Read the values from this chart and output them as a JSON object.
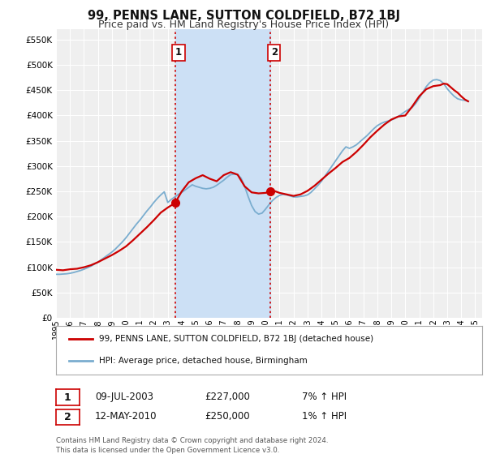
{
  "title": "99, PENNS LANE, SUTTON COLDFIELD, B72 1BJ",
  "subtitle": "Price paid vs. HM Land Registry's House Price Index (HPI)",
  "ytick_values": [
    0,
    50000,
    100000,
    150000,
    200000,
    250000,
    300000,
    350000,
    400000,
    450000,
    500000,
    550000
  ],
  "ylim": [
    0,
    570000
  ],
  "xlim_start": 1995.0,
  "xlim_end": 2025.5,
  "background_color": "#ffffff",
  "plot_bg_color": "#efefef",
  "grid_color": "#ffffff",
  "red_line_color": "#cc0000",
  "blue_line_color": "#7aadcf",
  "shade_color": "#cce0f5",
  "marker1_date": 2003.52,
  "marker2_date": 2010.36,
  "marker1_value": 227000,
  "marker2_value": 250000,
  "vline1_date": 2003.52,
  "vline2_date": 2010.36,
  "legend_label_red": "99, PENNS LANE, SUTTON COLDFIELD, B72 1BJ (detached house)",
  "legend_label_blue": "HPI: Average price, detached house, Birmingham",
  "table_row1": [
    "1",
    "09-JUL-2003",
    "£227,000",
    "7% ↑ HPI"
  ],
  "table_row2": [
    "2",
    "12-MAY-2010",
    "£250,000",
    "1% ↑ HPI"
  ],
  "footer": "Contains HM Land Registry data © Crown copyright and database right 2024.\nThis data is licensed under the Open Government Licence v3.0.",
  "title_fontsize": 10.5,
  "subtitle_fontsize": 9,
  "tick_fontsize": 7.5,
  "hpi_data_x": [
    1995.0,
    1995.25,
    1995.5,
    1995.75,
    1996.0,
    1996.25,
    1996.5,
    1996.75,
    1997.0,
    1997.25,
    1997.5,
    1997.75,
    1998.0,
    1998.25,
    1998.5,
    1998.75,
    1999.0,
    1999.25,
    1999.5,
    1999.75,
    2000.0,
    2000.25,
    2000.5,
    2000.75,
    2001.0,
    2001.25,
    2001.5,
    2001.75,
    2002.0,
    2002.25,
    2002.5,
    2002.75,
    2003.0,
    2003.25,
    2003.5,
    2003.75,
    2004.0,
    2004.25,
    2004.5,
    2004.75,
    2005.0,
    2005.25,
    2005.5,
    2005.75,
    2006.0,
    2006.25,
    2006.5,
    2006.75,
    2007.0,
    2007.25,
    2007.5,
    2007.75,
    2008.0,
    2008.25,
    2008.5,
    2008.75,
    2009.0,
    2009.25,
    2009.5,
    2009.75,
    2010.0,
    2010.25,
    2010.5,
    2010.75,
    2011.0,
    2011.25,
    2011.5,
    2011.75,
    2012.0,
    2012.25,
    2012.5,
    2012.75,
    2013.0,
    2013.25,
    2013.5,
    2013.75,
    2014.0,
    2014.25,
    2014.5,
    2014.75,
    2015.0,
    2015.25,
    2015.5,
    2015.75,
    2016.0,
    2016.25,
    2016.5,
    2016.75,
    2017.0,
    2017.25,
    2017.5,
    2017.75,
    2018.0,
    2018.25,
    2018.5,
    2018.75,
    2019.0,
    2019.25,
    2019.5,
    2019.75,
    2020.0,
    2020.25,
    2020.5,
    2020.75,
    2021.0,
    2021.25,
    2021.5,
    2021.75,
    2022.0,
    2022.25,
    2022.5,
    2022.75,
    2023.0,
    2023.25,
    2023.5,
    2023.75,
    2024.0,
    2024.25,
    2024.5
  ],
  "hpi_data_y": [
    86000,
    86000,
    86500,
    87000,
    88000,
    89500,
    91500,
    93500,
    96000,
    99000,
    102000,
    106000,
    110000,
    115000,
    120000,
    125000,
    130000,
    136000,
    143000,
    150000,
    158000,
    167000,
    176000,
    185000,
    193000,
    202000,
    211000,
    219000,
    228000,
    236000,
    243000,
    249000,
    228000,
    234000,
    239000,
    244000,
    248000,
    253000,
    258000,
    263000,
    260000,
    258000,
    256000,
    255000,
    256000,
    258000,
    262000,
    267000,
    272000,
    278000,
    283000,
    284000,
    283000,
    276000,
    260000,
    240000,
    222000,
    210000,
    205000,
    207000,
    215000,
    224000,
    232000,
    238000,
    242000,
    244000,
    243000,
    241000,
    239000,
    239000,
    240000,
    241000,
    243000,
    248000,
    255000,
    262000,
    270000,
    280000,
    290000,
    300000,
    310000,
    320000,
    330000,
    338000,
    335000,
    338000,
    342000,
    348000,
    354000,
    360000,
    367000,
    374000,
    380000,
    384000,
    387000,
    389000,
    391000,
    394000,
    398000,
    403000,
    408000,
    412000,
    416000,
    424000,
    434000,
    446000,
    457000,
    465000,
    470000,
    471000,
    469000,
    463000,
    453000,
    445000,
    438000,
    433000,
    431000,
    430000,
    428000
  ],
  "red_data_x": [
    1995.0,
    1995.5,
    1996.0,
    1996.5,
    1997.0,
    1997.5,
    1998.0,
    1998.5,
    1999.0,
    1999.5,
    2000.0,
    2000.5,
    2001.0,
    2001.5,
    2002.0,
    2002.5,
    2003.0,
    2003.52,
    2004.0,
    2004.5,
    2005.0,
    2005.5,
    2006.0,
    2006.5,
    2007.0,
    2007.5,
    2008.0,
    2008.5,
    2009.0,
    2009.5,
    2010.0,
    2010.36,
    2010.5,
    2011.0,
    2011.5,
    2012.0,
    2012.5,
    2013.0,
    2013.5,
    2014.0,
    2014.5,
    2015.0,
    2015.5,
    2016.0,
    2016.5,
    2017.0,
    2017.5,
    2018.0,
    2018.5,
    2019.0,
    2019.5,
    2020.0,
    2020.5,
    2021.0,
    2021.5,
    2022.0,
    2022.5,
    2022.75,
    2023.0,
    2023.25,
    2023.5,
    2023.75,
    2024.0,
    2024.25,
    2024.5
  ],
  "red_data_y": [
    95000,
    94000,
    96000,
    97000,
    100000,
    104000,
    110000,
    117000,
    124000,
    132000,
    141000,
    153000,
    166000,
    179000,
    193000,
    208000,
    218000,
    227000,
    250000,
    268000,
    276000,
    282000,
    275000,
    270000,
    282000,
    288000,
    283000,
    260000,
    248000,
    246000,
    247000,
    250000,
    252000,
    247000,
    244000,
    241000,
    244000,
    251000,
    261000,
    273000,
    285000,
    296000,
    308000,
    316000,
    328000,
    342000,
    357000,
    370000,
    382000,
    392000,
    398000,
    400000,
    418000,
    438000,
    452000,
    458000,
    460000,
    463000,
    462000,
    456000,
    450000,
    445000,
    438000,
    432000,
    428000
  ]
}
